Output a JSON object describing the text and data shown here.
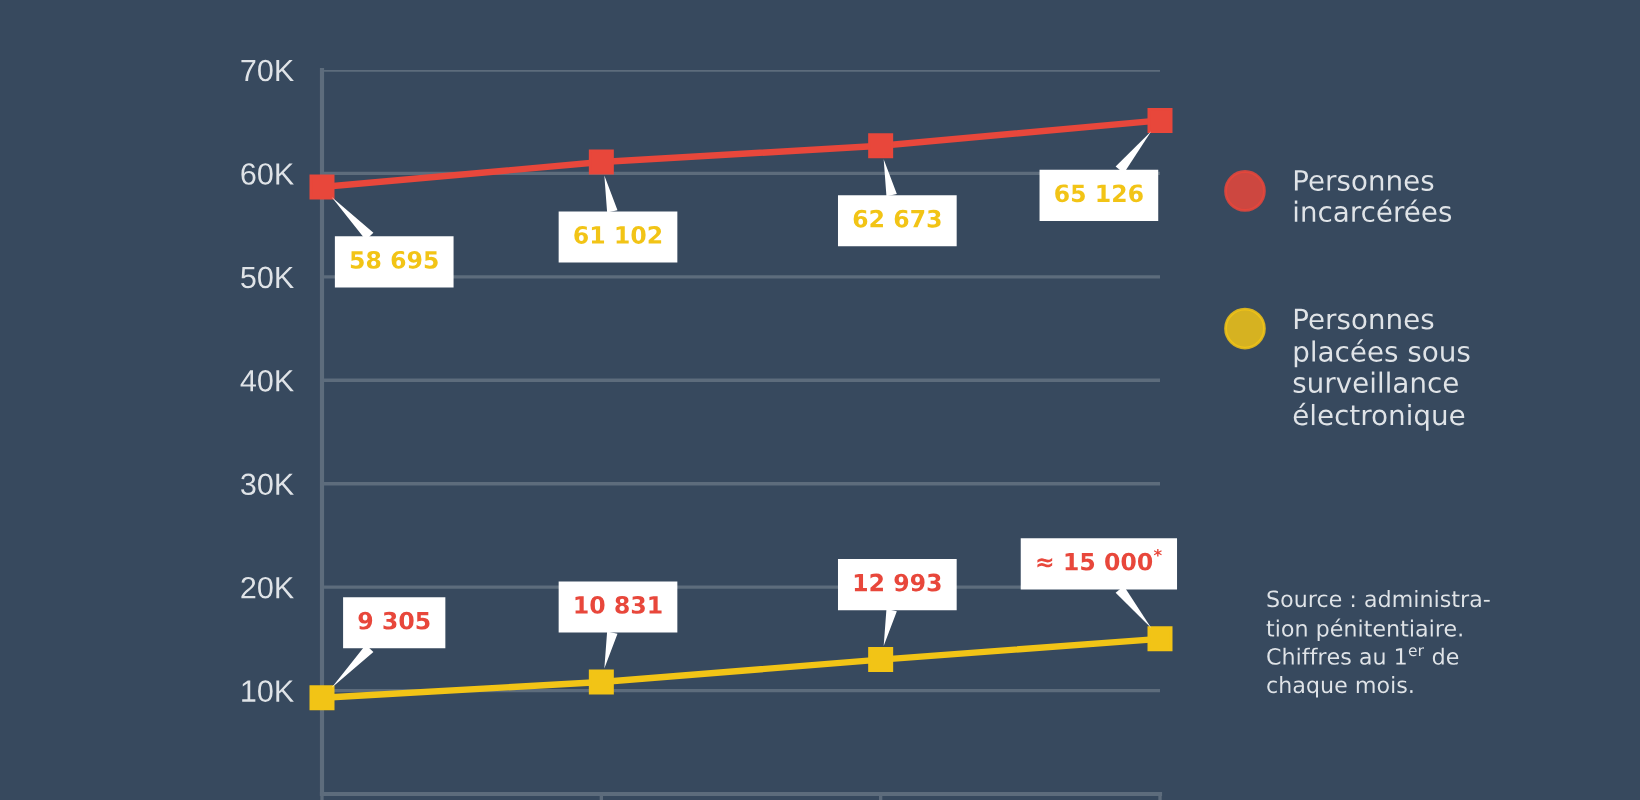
{
  "chart_data": {
    "type": "line",
    "categories": [
      null,
      null,
      null,
      null
    ],
    "series": [
      {
        "name": "Personnes\nincarcérées",
        "color": "#e8473b",
        "values": [
          58695,
          61102,
          62673,
          65126
        ],
        "value_labels": [
          "58 695",
          "61 102",
          "62 673",
          "65 126"
        ]
      },
      {
        "name": "Personnes\nplacées sous\nsurveillance\nélectronique",
        "color": "#f2c416",
        "values": [
          9305,
          10831,
          12993,
          15000
        ],
        "value_labels": [
          "9 305",
          "10 831",
          "12 993",
          "≈ 15 000$^{*}$"
        ]
      }
    ],
    "ylim": [
      0,
      70000
    ],
    "yticks": [
      {
        "value": 10000,
        "label": "10K"
      },
      {
        "value": 20000,
        "label": "20K"
      },
      {
        "value": 30000,
        "label": "30K"
      },
      {
        "value": 40000,
        "label": "40K"
      },
      {
        "value": 50000,
        "label": "50K"
      },
      {
        "value": 60000,
        "label": "60K"
      },
      {
        "value": 70000,
        "label": "70K"
      }
    ],
    "grid": "y",
    "legend": "right",
    "marker": "square",
    "line_style": "solid",
    "annotations": [
      "Source : administra-\ntion pénitentiaire.\nChiffres au 1$^{er}$ de\nchaque mois."
    ]
  }
}
